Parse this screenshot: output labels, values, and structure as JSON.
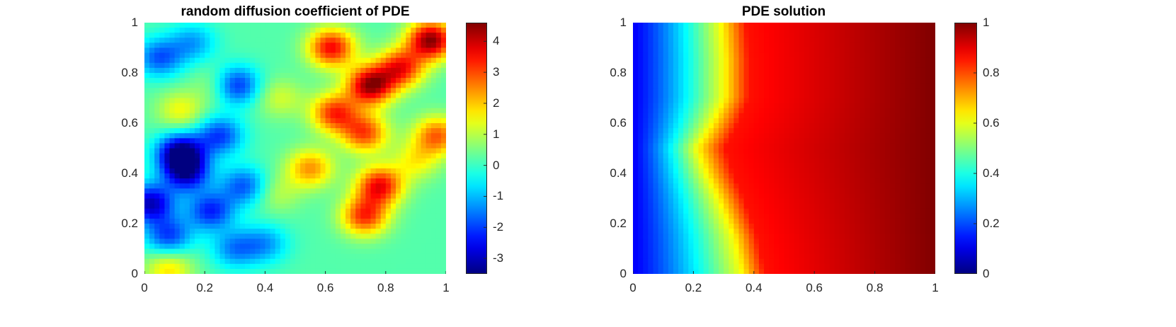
{
  "chart_data": [
    {
      "type": "heatmap",
      "title": "random diffusion coefficient of PDE",
      "xlabel": "",
      "ylabel": "",
      "xlim": [
        0,
        1
      ],
      "ylim": [
        0,
        1
      ],
      "x_ticks": [
        "0",
        "0.2",
        "0.4",
        "0.6",
        "0.8",
        "1"
      ],
      "y_ticks": [
        "0",
        "0.2",
        "0.4",
        "0.6",
        "0.8",
        "1"
      ],
      "colormap": "jet",
      "color_range": [
        -3.5,
        4.6
      ],
      "colorbar_ticks": [
        "-3",
        "-2",
        "-1",
        "0",
        "1",
        "2",
        "3",
        "4"
      ],
      "blobs": [
        {
          "x": 0.95,
          "y": 0.93,
          "value": 4.5
        },
        {
          "x": 0.75,
          "y": 0.75,
          "value": 4.4
        },
        {
          "x": 0.62,
          "y": 0.9,
          "value": 3.6
        },
        {
          "x": 0.85,
          "y": 0.82,
          "value": 3.4
        },
        {
          "x": 0.63,
          "y": 0.64,
          "value": 3.2
        },
        {
          "x": 0.73,
          "y": 0.56,
          "value": 3.0
        },
        {
          "x": 0.78,
          "y": 0.35,
          "value": 3.6
        },
        {
          "x": 0.73,
          "y": 0.23,
          "value": 3.2
        },
        {
          "x": 0.97,
          "y": 0.55,
          "value": 2.8
        },
        {
          "x": 0.55,
          "y": 0.42,
          "value": 2.4
        },
        {
          "x": 0.9,
          "y": 0.45,
          "value": 1.5
        },
        {
          "x": 0.45,
          "y": 0.7,
          "value": 1.2
        },
        {
          "x": 0.12,
          "y": 0.65,
          "value": 1.5
        },
        {
          "x": 0.25,
          "y": 0.75,
          "value": 1.3
        },
        {
          "x": 0.08,
          "y": 0.02,
          "value": 1.8
        },
        {
          "x": 0.44,
          "y": 0.32,
          "value": 1.0
        },
        {
          "x": 0.12,
          "y": 0.48,
          "value": -3.5
        },
        {
          "x": 0.02,
          "y": 0.28,
          "value": -3.0
        },
        {
          "x": 0.3,
          "y": 0.75,
          "value": -2.6
        },
        {
          "x": 0.14,
          "y": 0.4,
          "value": -2.6
        },
        {
          "x": 0.05,
          "y": 0.86,
          "value": -1.8
        },
        {
          "x": 0.22,
          "y": 0.25,
          "value": -2.2
        },
        {
          "x": 0.08,
          "y": 0.15,
          "value": -2.0
        },
        {
          "x": 0.33,
          "y": 0.35,
          "value": -1.8
        },
        {
          "x": 0.25,
          "y": 0.55,
          "value": -2.0
        },
        {
          "x": 0.16,
          "y": 0.92,
          "value": -1.2
        },
        {
          "x": 0.4,
          "y": 0.12,
          "value": -1.2
        },
        {
          "x": 0.3,
          "y": 0.1,
          "value": -1.4
        }
      ],
      "base_value": 0.2
    },
    {
      "type": "heatmap",
      "title": "PDE solution",
      "xlabel": "",
      "ylabel": "",
      "xlim": [
        0,
        1
      ],
      "ylim": [
        0,
        1
      ],
      "x_ticks": [
        "0",
        "0.2",
        "0.4",
        "0.6",
        "0.8",
        "1"
      ],
      "y_ticks": [
        "0",
        "0.2",
        "0.4",
        "0.6",
        "0.8",
        "1"
      ],
      "colormap": "jet",
      "color_range": [
        0,
        1
      ],
      "colorbar_ticks": [
        "0",
        "0.2",
        "0.4",
        "0.6",
        "0.8",
        "1"
      ],
      "front_profile": [
        {
          "y": 0.0,
          "x": 0.36
        },
        {
          "y": 0.15,
          "x": 0.33
        },
        {
          "y": 0.3,
          "x": 0.28
        },
        {
          "y": 0.4,
          "x": 0.24
        },
        {
          "y": 0.5,
          "x": 0.21
        },
        {
          "y": 0.6,
          "x": 0.26
        },
        {
          "y": 0.7,
          "x": 0.3
        },
        {
          "y": 0.85,
          "x": 0.3
        },
        {
          "y": 1.0,
          "x": 0.29
        }
      ],
      "front_value": 0.62,
      "left_value": 0.12,
      "right_value": 1.0
    }
  ]
}
